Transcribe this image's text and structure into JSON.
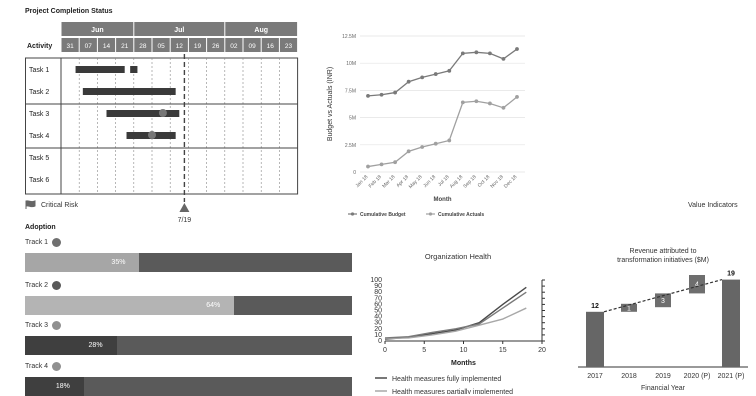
{
  "gantt": {
    "title": "Project Completion Status",
    "activity_label": "Activity",
    "months": [
      "Jun",
      "Jul",
      "Aug"
    ],
    "days": [
      "31",
      "07",
      "14",
      "21",
      "28",
      "05",
      "12",
      "19",
      "26",
      "02",
      "09",
      "16",
      "23"
    ],
    "tasks": [
      "Task 1",
      "Task 2",
      "Task 3",
      "Task 4",
      "Task 5",
      "Task 6"
    ],
    "legend_label": "Critical Risk",
    "marker_label": "7/19"
  },
  "adoption": {
    "title": "Adoption",
    "tracks": [
      {
        "label": "Track 1",
        "percent_label": "35%",
        "fill": 0.35,
        "dot_color": "#707070",
        "fill_color": "#a6a6a6",
        "rest_color": "#5a5a5a"
      },
      {
        "label": "Track 2",
        "percent_label": "64%",
        "fill": 0.64,
        "dot_color": "#5a5a5a",
        "fill_color": "#b4b4b4",
        "rest_color": "#5a5a5a"
      },
      {
        "label": "Track 3",
        "percent_label": "28%",
        "fill": 0.28,
        "dot_color": "#909090",
        "fill_color": "#3f3f3f",
        "rest_color": "#5a5a5a"
      },
      {
        "label": "Track 4",
        "percent_label": "18%",
        "fill": 0.18,
        "dot_color": "#909090",
        "fill_color": "#3f3f3f",
        "rest_color": "#5a5a5a"
      }
    ]
  },
  "value_indicators_label": "Value Indicators",
  "chart_data": [
    {
      "type": "line",
      "title": "",
      "xlabel": "Month",
      "ylabel": "Budget vs Actuals (INR)",
      "categories": [
        "Jan 18",
        "Feb 18",
        "Mar 18",
        "Apr 18",
        "May 18",
        "Jun 18",
        "Jul 18",
        "Aug 18",
        "Sep 18",
        "Oct 18",
        "Nov 18",
        "Dec 18"
      ],
      "y_ticks": [
        "0",
        "2.5M",
        "5M",
        "7.5M",
        "10M",
        "12.5M"
      ],
      "ylim": [
        0,
        12.5
      ],
      "series": [
        {
          "name": "Cumulative Budget",
          "values": [
            7.0,
            7.1,
            7.3,
            8.3,
            8.7,
            9.0,
            9.3,
            10.9,
            11.0,
            10.9,
            10.4,
            11.3
          ]
        },
        {
          "name": "Cumulative Actuals",
          "values": [
            0.5,
            0.7,
            0.9,
            1.9,
            2.3,
            2.6,
            2.9,
            6.4,
            6.5,
            6.3,
            5.9,
            6.9
          ]
        }
      ],
      "grid": true,
      "legend": "bottom"
    },
    {
      "type": "line",
      "title": "Organization Health",
      "xlabel": "Months",
      "ylabel": "",
      "x_ticks": [
        "0",
        "5",
        "10",
        "15",
        "20"
      ],
      "y_ticks": [
        "0",
        "10",
        "20",
        "30",
        "40",
        "50",
        "60",
        "70",
        "80",
        "90",
        "100"
      ],
      "xlim": [
        0,
        20
      ],
      "ylim": [
        0,
        100
      ],
      "series": [
        {
          "name": "Health measures fully implemented",
          "x": [
            0,
            3,
            6,
            9,
            12,
            15,
            18
          ],
          "values": [
            3,
            6,
            12,
            18,
            30,
            60,
            88
          ]
        },
        {
          "name": "Health measures partially implemented",
          "x": [
            0,
            3,
            6,
            9,
            12,
            15,
            18
          ],
          "values": [
            4,
            5,
            10,
            16,
            26,
            36,
            54
          ]
        },
        {
          "name": "",
          "x": [
            0,
            3,
            6,
            9,
            12,
            15,
            18
          ],
          "values": [
            5,
            7,
            14,
            20,
            28,
            54,
            80
          ]
        }
      ],
      "legend": "bottom"
    },
    {
      "type": "bar",
      "title": "Revenue attributed to transformation initiatives ($M)",
      "xlabel": "Financial Year",
      "ylabel": "",
      "categories": [
        "2017",
        "2018",
        "2019",
        "2020 (P)",
        "2021 (P)"
      ],
      "values": [
        12,
        1,
        3,
        4,
        19
      ],
      "data_labels": [
        "12",
        "1",
        "3",
        "4",
        "19"
      ],
      "ylim": [
        0,
        20
      ]
    }
  ]
}
